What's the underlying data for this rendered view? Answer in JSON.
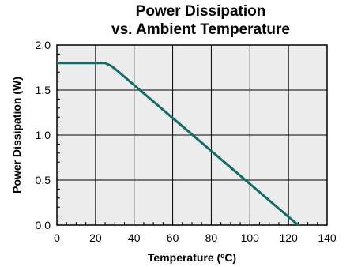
{
  "chart_data": {
    "type": "line",
    "title": "Power Dissipation",
    "subtitle": "vs. Ambient Temperature",
    "xlabel": "Temperature (ºC)",
    "ylabel": "Power Dissipation (W)",
    "xlim": [
      0,
      140
    ],
    "ylim": [
      0.0,
      2.0
    ],
    "x_ticks": [
      0,
      20,
      40,
      60,
      80,
      100,
      120,
      140
    ],
    "y_ticks": [
      0.0,
      0.5,
      1.0,
      1.5,
      2.0
    ],
    "x_tick_labels": [
      "0",
      "20",
      "40",
      "60",
      "80",
      "100",
      "120",
      "140"
    ],
    "y_tick_labels": [
      "0.0",
      "0.5",
      "1.0",
      "1.5",
      "2.0"
    ],
    "grid": true,
    "series": [
      {
        "x": [
          0,
          25,
          28,
          31,
          125
        ],
        "y": [
          1.8,
          1.8,
          1.77,
          1.72,
          0.0
        ],
        "color": "#116e66"
      }
    ]
  },
  "colors": {
    "plot_background": "#ececec",
    "grid": "#000000",
    "line": "#116e66"
  }
}
